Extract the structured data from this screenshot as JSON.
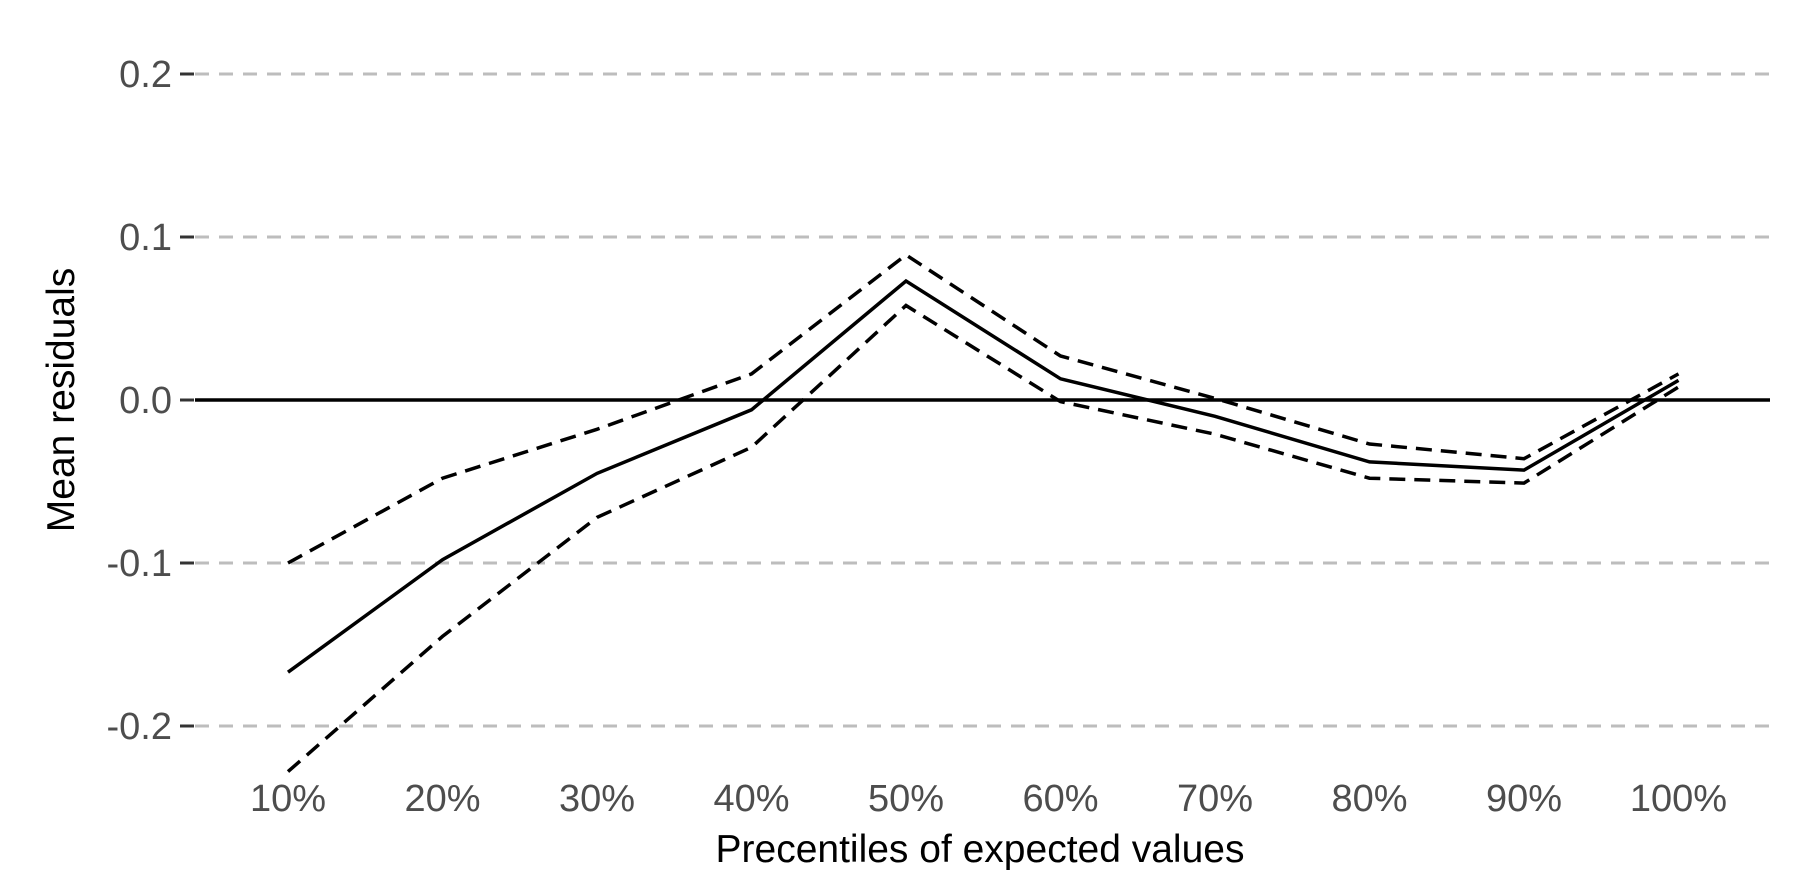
{
  "chart_data": {
    "type": "line",
    "title": "",
    "xlabel": "Precentiles of expected values",
    "ylabel": "Mean residuals",
    "categories": [
      "10%",
      "20%",
      "30%",
      "40%",
      "50%",
      "60%",
      "70%",
      "80%",
      "90%",
      "100%"
    ],
    "ylim": [
      -0.22,
      0.22
    ],
    "yticks": [
      -0.2,
      -0.1,
      0.0,
      0.1,
      0.2
    ],
    "ytick_labels": [
      "-0.2",
      "-0.1",
      "0.0",
      "0.1",
      "0.2"
    ],
    "grid": true,
    "reference_line": 0.0,
    "series": [
      {
        "style": "solid",
        "values": [
          -0.167,
          -0.098,
          -0.045,
          -0.006,
          0.073,
          0.013,
          -0.01,
          -0.038,
          -0.043,
          0.012
        ]
      },
      {
        "style": "dashed",
        "values": [
          -0.1,
          -0.048,
          -0.018,
          0.016,
          0.089,
          0.027,
          0.001,
          -0.027,
          -0.036,
          0.016
        ]
      },
      {
        "style": "dashed",
        "values": [
          -0.228,
          -0.145,
          -0.072,
          -0.029,
          0.058,
          -0.001,
          -0.021,
          -0.048,
          -0.051,
          0.008
        ]
      }
    ],
    "colors": {
      "series": "#000000",
      "grid": "#bdbdbd",
      "tick_text": "#4d4d4d"
    }
  }
}
